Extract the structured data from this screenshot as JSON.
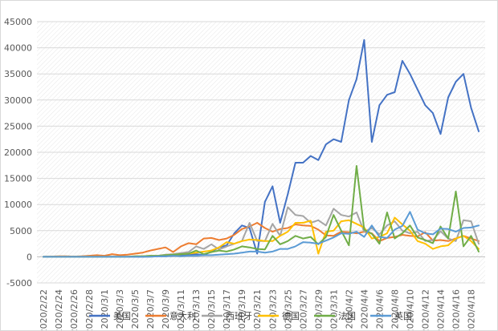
{
  "chart_data": {
    "type": "line",
    "title": "",
    "xlabel": "",
    "ylabel": "",
    "ylim": [
      -5000,
      45000
    ],
    "y_ticks": [
      -5000,
      0,
      5000,
      10000,
      15000,
      20000,
      25000,
      30000,
      35000,
      40000,
      45000
    ],
    "grid": "horizontal diagonal-hatch background",
    "legend_position": "bottom",
    "x_tick_labels": [
      "2020/2/22",
      "2020/2/24",
      "2020/2/26",
      "2020/2/28",
      "2020/3/1",
      "2020/3/3",
      "2020/3/5",
      "2020/3/7",
      "2020/3/9",
      "2020/3/11",
      "2020/3/13",
      "2020/3/15",
      "2020/3/17",
      "2020/3/19",
      "2020/3/21",
      "2020/3/23",
      "2020/3/25",
      "2020/3/27",
      "2020/3/29",
      "2020/3/31",
      "2020/4/2",
      "2020/4/4",
      "2020/4/6",
      "2020/4/8",
      "2020/4/10",
      "2020/4/12",
      "2020/4/14",
      "2020/4/16",
      "2020/4/18"
    ],
    "x": [
      "2020/2/22",
      "2020/2/23",
      "2020/2/24",
      "2020/2/25",
      "2020/2/26",
      "2020/2/27",
      "2020/2/28",
      "2020/2/29",
      "2020/3/1",
      "2020/3/2",
      "2020/3/3",
      "2020/3/4",
      "2020/3/5",
      "2020/3/6",
      "2020/3/7",
      "2020/3/8",
      "2020/3/9",
      "2020/3/10",
      "2020/3/11",
      "2020/3/12",
      "2020/3/13",
      "2020/3/14",
      "2020/3/15",
      "2020/3/16",
      "2020/3/17",
      "2020/3/18",
      "2020/3/19",
      "2020/3/20",
      "2020/3/21",
      "2020/3/22",
      "2020/3/23",
      "2020/3/24",
      "2020/3/25",
      "2020/3/26",
      "2020/3/27",
      "2020/3/28",
      "2020/3/29",
      "2020/3/30",
      "2020/3/31",
      "2020/4/1",
      "2020/4/2",
      "2020/4/3",
      "2020/4/4",
      "2020/4/5",
      "2020/4/6",
      "2020/4/7",
      "2020/4/8",
      "2020/4/9",
      "2020/4/10",
      "2020/4/11",
      "2020/4/12",
      "2020/4/13",
      "2020/4/14",
      "2020/4/15",
      "2020/4/16",
      "2020/4/17",
      "2020/4/18",
      "2020/4/19"
    ],
    "series": [
      {
        "name": "美国",
        "color": "#4472C4",
        "values": [
          0,
          0,
          0,
          0,
          0,
          0,
          0,
          0,
          0,
          0,
          0,
          0,
          0,
          0,
          100,
          100,
          100,
          200,
          300,
          400,
          500,
          300,
          1000,
          1800,
          2200,
          4500,
          6000,
          5500,
          600,
          10500,
          13500,
          6500,
          12000,
          18000,
          18000,
          19300,
          18500,
          21500,
          22500,
          22000,
          30000,
          34000,
          41500,
          22000,
          29000,
          31000,
          31500,
          37500,
          35000,
          32000,
          29000,
          27500,
          23500,
          30500,
          33500,
          35000,
          28500,
          24000
        ]
      },
      {
        "name": "意大利",
        "color": "#ED7D31",
        "values": [
          0,
          50,
          100,
          100,
          50,
          100,
          200,
          300,
          200,
          500,
          300,
          400,
          600,
          800,
          1200,
          1500,
          1800,
          900,
          2000,
          2600,
          2400,
          3500,
          3600,
          3200,
          3500,
          4200,
          5300,
          5800,
          6500,
          5500,
          4800,
          5300,
          5500,
          6200,
          6000,
          5900,
          5200,
          4100,
          4000,
          4800,
          4700,
          4500,
          4800,
          4500,
          3000,
          3600,
          3800,
          4200,
          4000,
          3900,
          4700,
          3100,
          3200,
          3000,
          3500,
          4000,
          3500,
          3000
        ]
      },
      {
        "name": "西班牙",
        "color": "#A5A5A5",
        "values": [
          0,
          0,
          0,
          0,
          0,
          0,
          0,
          0,
          0,
          0,
          0,
          0,
          0,
          100,
          100,
          200,
          400,
          500,
          700,
          900,
          2000,
          1500,
          2400,
          1400,
          2000,
          2500,
          3000,
          6500,
          3000,
          3000,
          6300,
          4000,
          9500,
          8000,
          7800,
          6500,
          7000,
          6000,
          9200,
          8000,
          7700,
          8500,
          4800,
          5500,
          4300,
          6000,
          6800,
          5000,
          4500,
          4800,
          3000,
          3200,
          4900,
          3500,
          3000,
          7000,
          6800,
          2500
        ]
      },
      {
        "name": "德国",
        "color": "#FFC000",
        "values": [
          0,
          0,
          0,
          0,
          0,
          0,
          0,
          0,
          0,
          0,
          0,
          0,
          100,
          100,
          200,
          200,
          300,
          400,
          500,
          600,
          800,
          1000,
          1200,
          1800,
          2800,
          2500,
          3000,
          3300,
          3200,
          3000,
          3000,
          4000,
          4800,
          6500,
          6500,
          6900,
          600,
          4800,
          5000,
          6800,
          7000,
          6300,
          5600,
          3500,
          3800,
          4500,
          7500,
          6200,
          5000,
          3000,
          2500,
          1500,
          2000,
          2200,
          3500,
          4000,
          3000,
          1500
        ]
      },
      {
        "name": "法国",
        "color": "#70AD47",
        "values": [
          0,
          0,
          0,
          0,
          0,
          0,
          0,
          0,
          0,
          0,
          0,
          0,
          100,
          100,
          200,
          200,
          300,
          400,
          500,
          600,
          1200,
          500,
          900,
          1200,
          1000,
          1400,
          2000,
          1800,
          1500,
          1400,
          4000,
          2400,
          3000,
          4000,
          3500,
          3800,
          2400,
          3800,
          8000,
          5000,
          2200,
          17400,
          5200,
          4400,
          2500,
          8500,
          3500,
          4500,
          6000,
          3700,
          3200,
          2600,
          5800,
          3500,
          12500,
          2000,
          4000,
          1000
        ]
      },
      {
        "name": "英国",
        "color": "#5B9BD5",
        "values": [
          0,
          0,
          0,
          0,
          0,
          0,
          0,
          0,
          0,
          0,
          0,
          0,
          0,
          0,
          0,
          100,
          100,
          200,
          100,
          200,
          200,
          300,
          300,
          400,
          500,
          600,
          800,
          1000,
          1000,
          800,
          1000,
          1500,
          1500,
          2000,
          2800,
          2700,
          2500,
          3100,
          3700,
          4500,
          4400,
          4800,
          3800,
          6000,
          3800,
          3600,
          5200,
          5900,
          8600,
          5200,
          4500,
          4300,
          5400,
          5300,
          4800,
          5500,
          5600,
          6000
        ]
      }
    ]
  }
}
